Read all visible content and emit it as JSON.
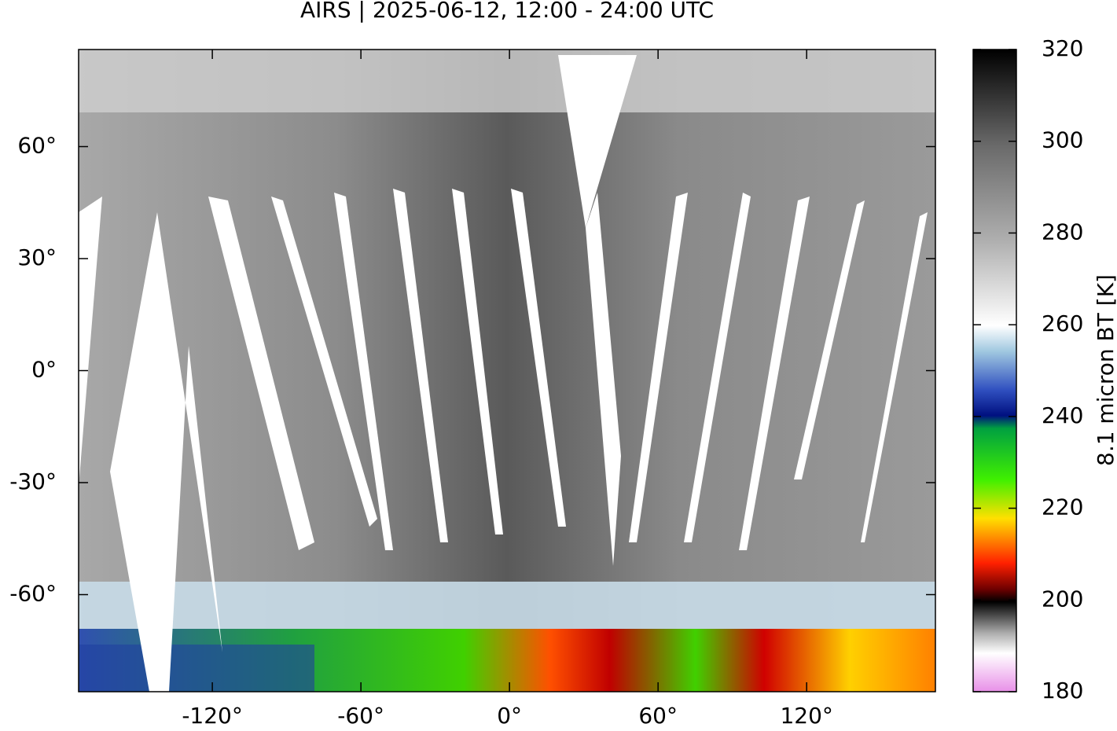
{
  "title": "AIRS | 2025-06-12, 12:00 - 24:00 UTC",
  "map": {
    "xlim": [
      -174,
      172
    ],
    "ylim": [
      -86,
      86
    ],
    "xticks": [
      {
        "value": -120,
        "label": "-120°"
      },
      {
        "value": -60,
        "label": "-60°"
      },
      {
        "value": 0,
        "label": "0°"
      },
      {
        "value": 60,
        "label": "60°"
      },
      {
        "value": 120,
        "label": "120°"
      }
    ],
    "yticks": [
      {
        "value": 60,
        "label": "60°"
      },
      {
        "value": 30,
        "label": "30°"
      },
      {
        "value": 0,
        "label": "0°"
      },
      {
        "value": -30,
        "label": "-30°"
      },
      {
        "value": -60,
        "label": "-60°"
      }
    ]
  },
  "colorbar": {
    "label": "8.1 micron BT [K]",
    "lim": [
      180,
      320
    ],
    "ticks": [
      180,
      200,
      220,
      240,
      260,
      280,
      300,
      320
    ]
  }
}
